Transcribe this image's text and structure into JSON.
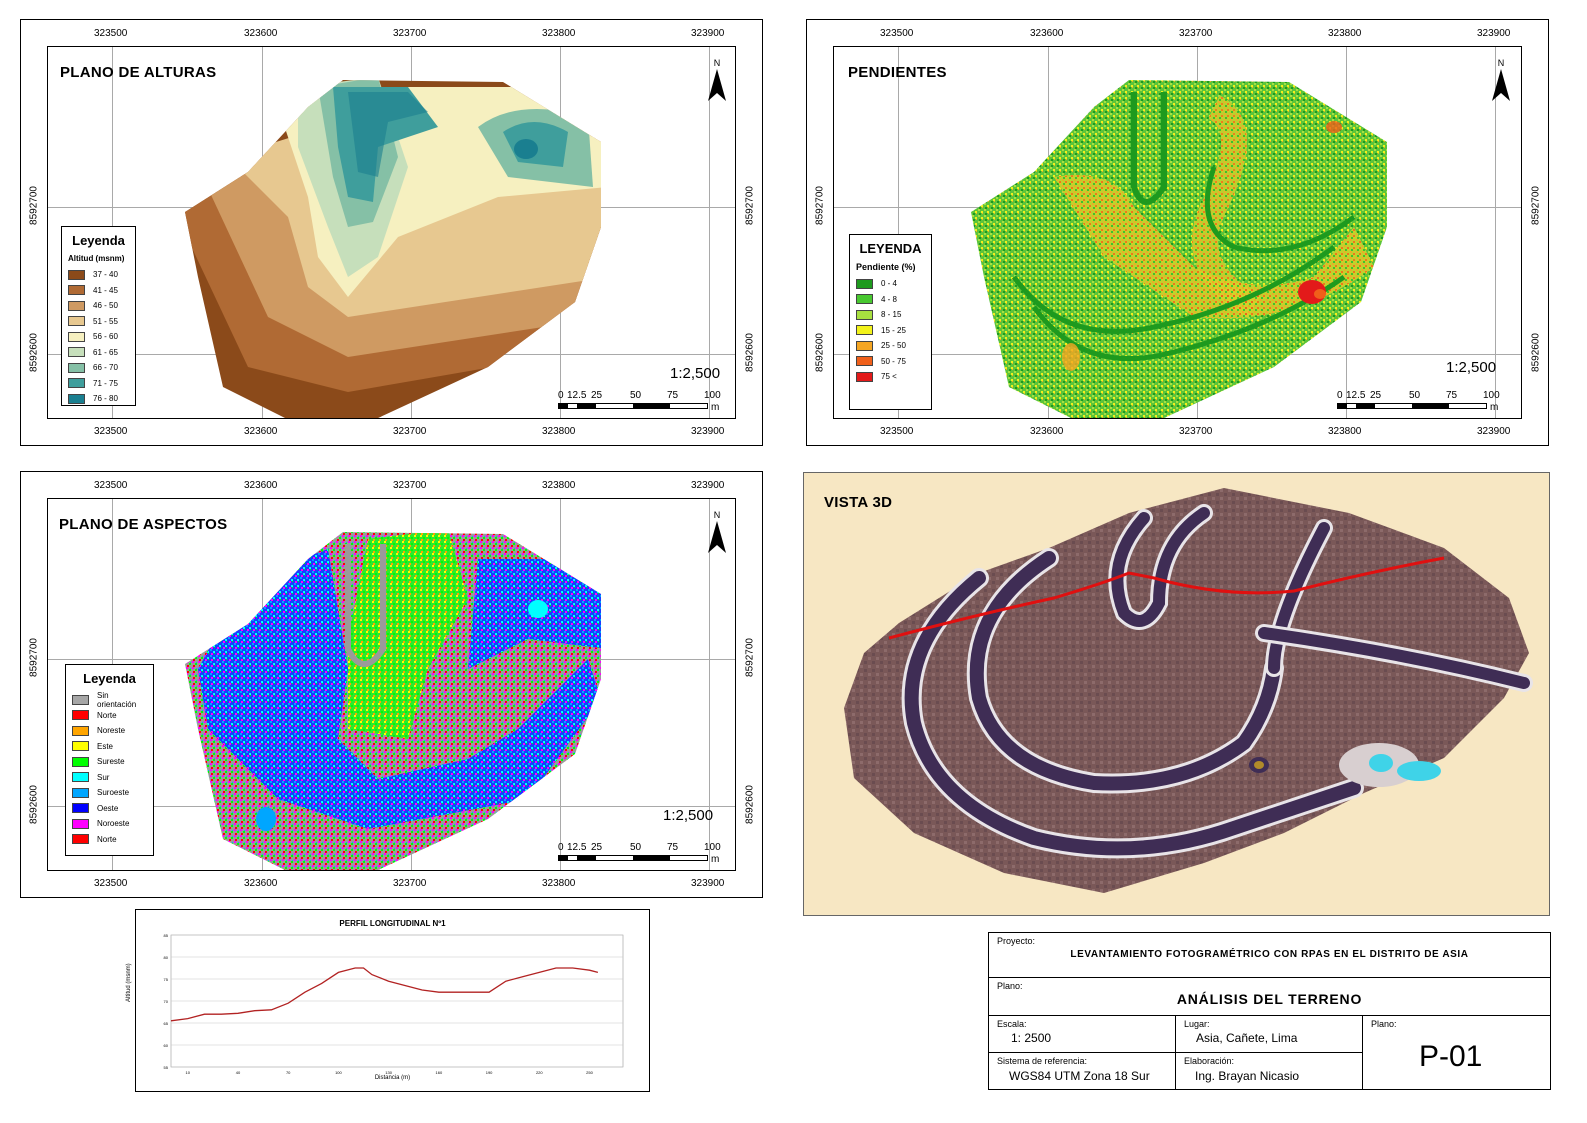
{
  "maps": {
    "heights": {
      "title": "PLANO DE ALTURAS",
      "scale": "1:2,500",
      "legend": {
        "title": "Leyenda",
        "subtitle": "Altitud (msnm)",
        "items": [
          {
            "label": "37 - 40",
            "color": "#8b4a1a"
          },
          {
            "label": "41 - 45",
            "color": "#b06a34"
          },
          {
            "label": "46 - 50",
            "color": "#cf9a62"
          },
          {
            "label": "51 - 55",
            "color": "#e7c890"
          },
          {
            "label": "56 - 60",
            "color": "#f6f0c0"
          },
          {
            "label": "61 - 65",
            "color": "#c6dfbb"
          },
          {
            "label": "66 - 70",
            "color": "#85c0a6"
          },
          {
            "label": "71 - 75",
            "color": "#3f9e9c"
          },
          {
            "label": "76 - 80",
            "color": "#1a7f90"
          }
        ]
      }
    },
    "slopes": {
      "title": "PENDIENTES",
      "scale": "1:2,500",
      "legend": {
        "title": "LEYENDA",
        "subtitle": "Pendiente (%)",
        "items": [
          {
            "label": "0 - 4",
            "color": "#1e9a1e"
          },
          {
            "label": "4 - 8",
            "color": "#48c830"
          },
          {
            "label": "8 - 15",
            "color": "#a8e040"
          },
          {
            "label": "15 - 25",
            "color": "#f2f21a"
          },
          {
            "label": "25 - 50",
            "color": "#f5a623"
          },
          {
            "label": "50 - 75",
            "color": "#f0601a"
          },
          {
            "label": "75 <",
            "color": "#e31a1a"
          }
        ]
      }
    },
    "aspects": {
      "title": "PLANO DE ASPECTOS",
      "scale": "1:2,500",
      "legend": {
        "title": "Leyenda",
        "items": [
          {
            "label": "Sin orientación",
            "color": "#a6a6a6"
          },
          {
            "label": "Norte",
            "color": "#ff0000"
          },
          {
            "label": "Noreste",
            "color": "#ffa500"
          },
          {
            "label": "Este",
            "color": "#ffff00"
          },
          {
            "label": "Sureste",
            "color": "#00ff00"
          },
          {
            "label": "Sur",
            "color": "#00ffff"
          },
          {
            "label": "Suroeste",
            "color": "#00a6ff"
          },
          {
            "label": "Oeste",
            "color": "#0000ff"
          },
          {
            "label": "Noroeste",
            "color": "#ff00ff"
          },
          {
            "label": "Norte",
            "color": "#ff0000"
          }
        ]
      }
    },
    "grid": {
      "x_labels": [
        "323500",
        "323600",
        "323700",
        "323800",
        "323900"
      ],
      "y_labels": [
        "8592700",
        "8592600"
      ]
    },
    "scalebar": {
      "labels": [
        "0",
        "12.5",
        "25",
        "50",
        "75",
        "100"
      ],
      "unit": "m"
    },
    "north_label": "N"
  },
  "view3d": {
    "title": "VISTA 3D"
  },
  "profile": {
    "title": "PERFIL LONGITUDINAL Nº1",
    "xlabel": "Distancia (m)",
    "ylabel": "Altitud (msnm)"
  },
  "chart_data": {
    "type": "line",
    "title": "PERFIL LONGITUDINAL Nº1",
    "xlabel": "Distancia (m)",
    "ylabel": "Altitud (msnm)",
    "x_ticks": [
      10,
      40,
      70,
      100,
      130,
      160,
      190,
      220,
      250
    ],
    "y_ticks": [
      55,
      60,
      65,
      70,
      75,
      80,
      85
    ],
    "xlim": [
      0,
      270
    ],
    "ylim": [
      55,
      85
    ],
    "series": [
      {
        "color": "#b22222",
        "x": [
          0,
          10,
          20,
          30,
          40,
          50,
          60,
          70,
          80,
          90,
          100,
          110,
          115,
          120,
          130,
          140,
          150,
          160,
          170,
          180,
          190,
          200,
          210,
          220,
          230,
          240,
          250,
          255
        ],
        "y": [
          65.5,
          66,
          67,
          67,
          67.2,
          67.8,
          68,
          69.5,
          72,
          74,
          76.5,
          77.5,
          77.5,
          76,
          74.5,
          73.5,
          72.5,
          72,
          72,
          72,
          72,
          74.5,
          75.5,
          76.5,
          77.5,
          77.5,
          77,
          76.5
        ]
      }
    ]
  },
  "title_block": {
    "project_label": "Proyecto:",
    "project": "LEVANTAMIENTO FOTOGRAMÉTRICO CON RPAS EN EL DISTRITO DE ASIA",
    "plan_label": "Plano:",
    "plan": "ANÁLISIS DEL TERRENO",
    "scale_label": "Escala:",
    "scale": "1: 2500",
    "place_label": "Lugar:",
    "place": "Asia, Cañete, Lima",
    "sheet_label": "Plano:",
    "sheet": "P-01",
    "crs_label": "Sistema de referencia:",
    "crs": "WGS84 UTM Zona 18 Sur",
    "author_label": "Elaboración:",
    "author": "Ing. Brayan Nicasio"
  }
}
